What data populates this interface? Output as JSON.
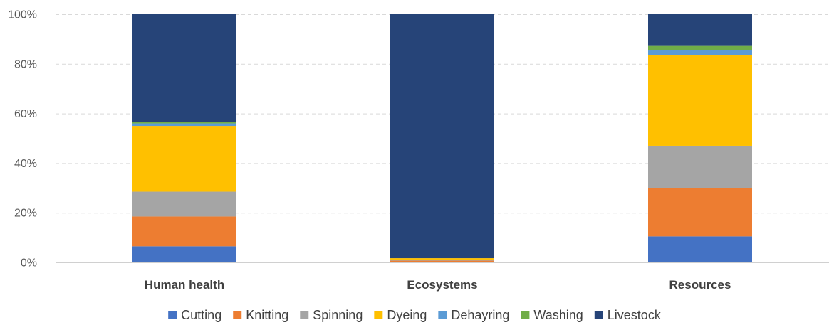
{
  "chart_data": {
    "type": "bar",
    "stacked": true,
    "percent_stacked": true,
    "categories": [
      "Human health",
      "Ecosystems",
      "Resources"
    ],
    "y_ticks": [
      "0%",
      "20%",
      "40%",
      "60%",
      "80%",
      "100%"
    ],
    "ylim": [
      0,
      100
    ],
    "grid": true,
    "legend_position": "bottom",
    "series": [
      {
        "name": "Cutting",
        "color": "#4472C4",
        "values": [
          6.5,
          0.2,
          10.5
        ]
      },
      {
        "name": "Knitting",
        "color": "#ED7D31",
        "values": [
          12.0,
          0.5,
          19.5
        ]
      },
      {
        "name": "Spinning",
        "color": "#A5A5A5",
        "values": [
          10.0,
          0.3,
          17.0
        ]
      },
      {
        "name": "Dyeing",
        "color": "#FFC000",
        "values": [
          26.5,
          0.7,
          36.5
        ]
      },
      {
        "name": "Dehayring",
        "color": "#5B9BD5",
        "values": [
          1.0,
          0.0,
          2.0
        ]
      },
      {
        "name": "Washing",
        "color": "#70AD47",
        "values": [
          0.5,
          0.0,
          2.0
        ]
      },
      {
        "name": "Livestock",
        "color": "#264478",
        "values": [
          43.5,
          98.3,
          12.5
        ]
      }
    ]
  }
}
